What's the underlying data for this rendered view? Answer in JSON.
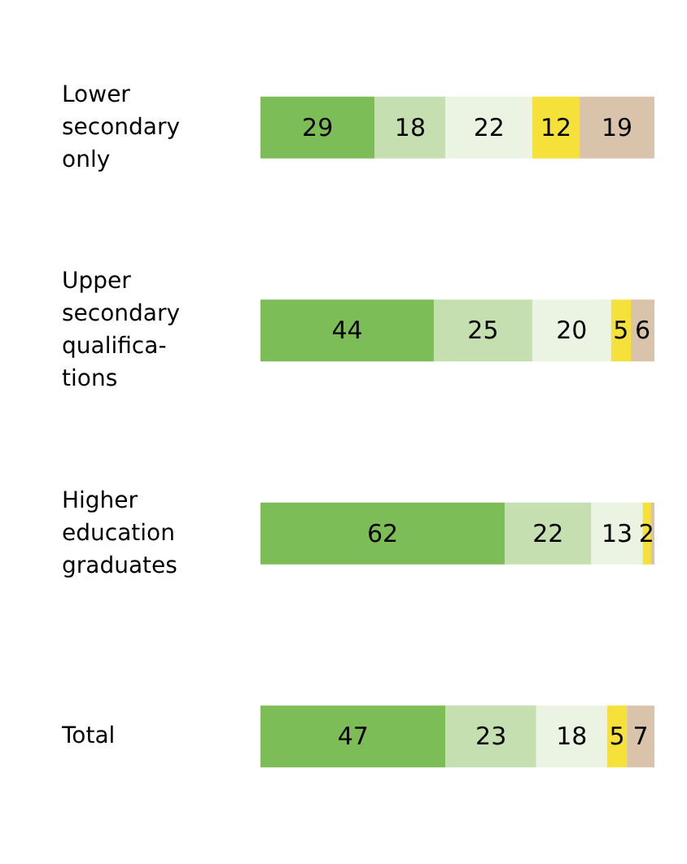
{
  "chart_data": {
    "type": "bar",
    "orientation": "horizontal",
    "stacked": true,
    "categories": [
      "Lower\nsecondary\nonly",
      "Upper\nsecondary\nqualifica-\ntions",
      "Higher\neducation\ngraduates",
      "Total"
    ],
    "xlim": [
      0,
      100
    ],
    "tick_labels": "y",
    "series": [
      {
        "color": "#7cbd57",
        "values": [
          29,
          44,
          62,
          47
        ],
        "value_labels": [
          "29",
          "44",
          "62",
          "47"
        ]
      },
      {
        "color": "#c5dfb0",
        "values": [
          18,
          25,
          22,
          23
        ],
        "value_labels": [
          "18",
          "25",
          "22",
          "23"
        ]
      },
      {
        "color": "#ebf3e2",
        "values": [
          22,
          20,
          13,
          18
        ],
        "value_labels": [
          "22",
          "20",
          "13",
          "18"
        ]
      },
      {
        "color": "#f5e13a",
        "values": [
          12,
          5,
          2,
          5
        ],
        "value_labels": [
          "12",
          "5",
          "2",
          "5"
        ]
      },
      {
        "color": "#d9c4ab",
        "values": [
          19,
          6,
          1,
          7
        ],
        "value_labels": [
          "19",
          "6",
          null,
          "7"
        ]
      }
    ]
  }
}
